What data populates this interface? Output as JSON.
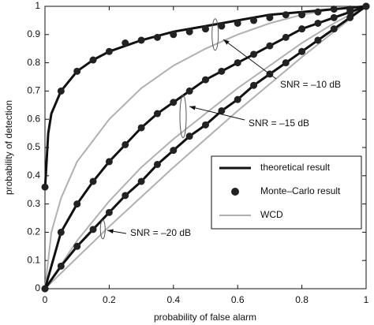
{
  "chart_data": {
    "type": "line",
    "xlabel": "probability of false alarm",
    "ylabel": "probability of detection",
    "xlim": [
      0,
      1
    ],
    "ylim": [
      0,
      1
    ],
    "xticks": [
      0,
      0.2,
      0.4,
      0.6,
      0.8,
      1
    ],
    "yticks": [
      0,
      0.1,
      0.2,
      0.3,
      0.4,
      0.5,
      0.6,
      0.7,
      0.8,
      0.9,
      1
    ],
    "legend": "lower right",
    "series": [
      {
        "name": "theoretical result",
        "color": "#111111",
        "linestyle": "solid",
        "linewidth": 3,
        "curves": [
          {
            "x": [
              0,
              0.01,
              0.02,
              0.05,
              0.1,
              0.15,
              0.2,
              0.3,
              0.4,
              0.5,
              0.6,
              0.7,
              0.8,
              0.9,
              1
            ],
            "values": [
              0.35,
              0.55,
              0.62,
              0.7,
              0.77,
              0.81,
              0.84,
              0.88,
              0.91,
              0.93,
              0.95,
              0.97,
              0.98,
              0.99,
              1
            ]
          },
          {
            "x": [
              0,
              0.05,
              0.1,
              0.15,
              0.2,
              0.25,
              0.3,
              0.35,
              0.4,
              0.45,
              0.5,
              0.55,
              0.6,
              0.65,
              0.7,
              0.75,
              0.8,
              0.85,
              0.9,
              0.95,
              1
            ],
            "values": [
              0,
              0.2,
              0.3,
              0.38,
              0.45,
              0.51,
              0.57,
              0.62,
              0.66,
              0.7,
              0.74,
              0.77,
              0.8,
              0.83,
              0.86,
              0.89,
              0.92,
              0.94,
              0.96,
              0.98,
              1
            ]
          },
          {
            "x": [
              0,
              0.05,
              0.1,
              0.15,
              0.2,
              0.25,
              0.3,
              0.35,
              0.4,
              0.45,
              0.5,
              0.55,
              0.6,
              0.65,
              0.7,
              0.75,
              0.8,
              0.85,
              0.9,
              0.95,
              1
            ],
            "values": [
              0,
              0.08,
              0.15,
              0.21,
              0.27,
              0.33,
              0.38,
              0.44,
              0.49,
              0.54,
              0.58,
              0.63,
              0.67,
              0.72,
              0.76,
              0.8,
              0.84,
              0.88,
              0.92,
              0.96,
              1
            ]
          }
        ]
      },
      {
        "name": "Monte–Carlo result",
        "color": "#222222",
        "linestyle": "none",
        "marker": "o",
        "curves": [
          {
            "x": [
              0,
              0.05,
              0.1,
              0.15,
              0.2,
              0.25,
              0.3,
              0.35,
              0.4,
              0.45,
              0.5,
              0.55,
              0.6,
              0.65,
              0.7,
              0.75,
              0.8,
              0.85,
              0.9,
              0.95,
              1
            ],
            "values": [
              0.36,
              0.7,
              0.77,
              0.81,
              0.84,
              0.87,
              0.88,
              0.89,
              0.9,
              0.91,
              0.92,
              0.93,
              0.94,
              0.95,
              0.96,
              0.97,
              0.97,
              0.98,
              0.99,
              0.99,
              1
            ]
          },
          {
            "x": [
              0,
              0.05,
              0.1,
              0.15,
              0.2,
              0.25,
              0.3,
              0.35,
              0.4,
              0.45,
              0.5,
              0.55,
              0.6,
              0.65,
              0.7,
              0.75,
              0.8,
              0.85,
              0.9,
              0.95,
              1
            ],
            "values": [
              0,
              0.2,
              0.3,
              0.38,
              0.45,
              0.51,
              0.57,
              0.62,
              0.66,
              0.7,
              0.74,
              0.77,
              0.8,
              0.83,
              0.86,
              0.89,
              0.92,
              0.94,
              0.96,
              0.98,
              1
            ]
          },
          {
            "x": [
              0,
              0.05,
              0.1,
              0.15,
              0.2,
              0.25,
              0.3,
              0.35,
              0.4,
              0.45,
              0.5,
              0.55,
              0.6,
              0.65,
              0.7,
              0.75,
              0.8,
              0.85,
              0.9,
              0.95,
              1
            ],
            "values": [
              0,
              0.08,
              0.15,
              0.21,
              0.27,
              0.33,
              0.38,
              0.44,
              0.49,
              0.54,
              0.58,
              0.63,
              0.67,
              0.72,
              0.76,
              0.8,
              0.84,
              0.88,
              0.92,
              0.96,
              1
            ]
          }
        ]
      },
      {
        "name": "WCD",
        "color": "#b0b0b0",
        "linestyle": "solid",
        "linewidth": 2,
        "curves": [
          {
            "x": [
              0,
              0.02,
              0.05,
              0.1,
              0.2,
              0.3,
              0.4,
              0.5,
              0.6,
              0.7,
              0.8,
              0.9,
              1
            ],
            "values": [
              0,
              0.2,
              0.32,
              0.45,
              0.6,
              0.71,
              0.79,
              0.85,
              0.9,
              0.94,
              0.97,
              0.99,
              1
            ]
          },
          {
            "x": [
              0,
              0.1,
              0.2,
              0.3,
              0.4,
              0.5,
              0.6,
              0.7,
              0.8,
              0.9,
              1
            ],
            "values": [
              0,
              0.17,
              0.31,
              0.43,
              0.53,
              0.62,
              0.71,
              0.79,
              0.87,
              0.94,
              1
            ]
          },
          {
            "x": [
              0,
              0.2,
              0.4,
              0.6,
              0.8,
              1
            ],
            "values": [
              0,
              0.22,
              0.43,
              0.63,
              0.82,
              1
            ]
          }
        ]
      }
    ],
    "annotations": [
      "SNR = –10 dB",
      "SNR = –15 dB",
      "SNR = –20 dB"
    ]
  }
}
